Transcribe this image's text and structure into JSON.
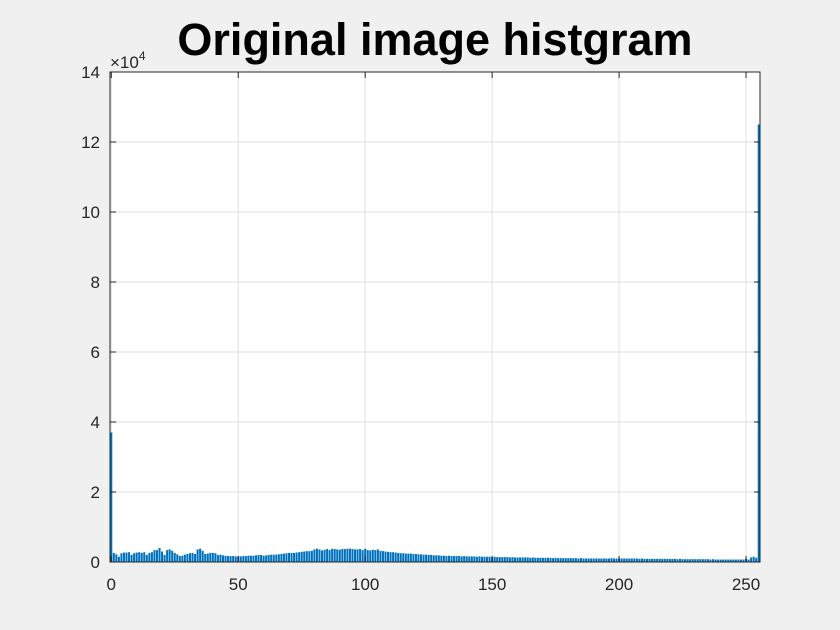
{
  "chart_data": {
    "type": "bar",
    "title": "Original image histgram",
    "xlabel": "",
    "ylabel": "",
    "xlim": [
      -0.5,
      255.5
    ],
    "ylim": [
      0,
      140000
    ],
    "x_ticks": [
      0,
      50,
      100,
      150,
      200,
      250
    ],
    "x_tick_labels": [
      "0",
      "50",
      "100",
      "150",
      "200",
      "250"
    ],
    "y_ticks": [
      0,
      20000,
      40000,
      60000,
      80000,
      100000,
      120000,
      140000
    ],
    "y_tick_labels": [
      "0",
      "2",
      "4",
      "6",
      "8",
      "10",
      "12",
      "14"
    ],
    "y_exponent": {
      "base": "×10",
      "power": "4"
    },
    "grid": true,
    "bar_color": "#0072BD",
    "x": [
      0,
      1,
      2,
      3,
      4,
      5,
      6,
      7,
      8,
      9,
      10,
      11,
      12,
      13,
      14,
      15,
      16,
      17,
      18,
      19,
      20,
      21,
      22,
      23,
      24,
      25,
      26,
      27,
      28,
      29,
      30,
      31,
      32,
      33,
      34,
      35,
      36,
      37,
      38,
      39,
      40,
      41,
      42,
      43,
      44,
      45,
      46,
      47,
      48,
      49,
      50,
      51,
      52,
      53,
      54,
      55,
      56,
      57,
      58,
      59,
      60,
      61,
      62,
      63,
      64,
      65,
      66,
      67,
      68,
      69,
      70,
      71,
      72,
      73,
      74,
      75,
      76,
      77,
      78,
      79,
      80,
      81,
      82,
      83,
      84,
      85,
      86,
      87,
      88,
      89,
      90,
      91,
      92,
      93,
      94,
      95,
      96,
      97,
      98,
      99,
      100,
      101,
      102,
      103,
      104,
      105,
      106,
      107,
      108,
      109,
      110,
      111,
      112,
      113,
      114,
      115,
      116,
      117,
      118,
      119,
      120,
      121,
      122,
      123,
      124,
      125,
      126,
      127,
      128,
      129,
      130,
      131,
      132,
      133,
      134,
      135,
      136,
      137,
      138,
      139,
      140,
      141,
      142,
      143,
      144,
      145,
      146,
      147,
      148,
      149,
      150,
      151,
      152,
      153,
      154,
      155,
      156,
      157,
      158,
      159,
      160,
      161,
      162,
      163,
      164,
      165,
      166,
      167,
      168,
      169,
      170,
      171,
      172,
      173,
      174,
      175,
      176,
      177,
      178,
      179,
      180,
      181,
      182,
      183,
      184,
      185,
      186,
      187,
      188,
      189,
      190,
      191,
      192,
      193,
      194,
      195,
      196,
      197,
      198,
      199,
      200,
      201,
      202,
      203,
      204,
      205,
      206,
      207,
      208,
      209,
      210,
      211,
      212,
      213,
      214,
      215,
      216,
      217,
      218,
      219,
      220,
      221,
      222,
      223,
      224,
      225,
      226,
      227,
      228,
      229,
      230,
      231,
      232,
      233,
      234,
      235,
      236,
      237,
      238,
      239,
      240,
      241,
      242,
      243,
      244,
      245,
      246,
      247,
      248,
      249,
      250,
      251,
      252,
      253,
      254,
      255
    ],
    "values": [
      37000,
      2600,
      2200,
      1500,
      2500,
      2700,
      2700,
      2800,
      2000,
      2500,
      2700,
      2800,
      2600,
      2800,
      2000,
      2600,
      2800,
      3400,
      3400,
      4000,
      3000,
      2000,
      3400,
      3600,
      3200,
      2600,
      2200,
      1700,
      1800,
      2100,
      2300,
      2500,
      2600,
      2300,
      3600,
      3800,
      3200,
      2300,
      2400,
      2600,
      2600,
      2500,
      2000,
      2100,
      1900,
      1800,
      1700,
      1700,
      1700,
      1600,
      1600,
      1600,
      1700,
      1700,
      1800,
      1800,
      1800,
      1900,
      2000,
      2000,
      1800,
      1900,
      2000,
      2100,
      2100,
      2100,
      2200,
      2300,
      2400,
      2500,
      2600,
      2600,
      2600,
      2700,
      2800,
      2900,
      3000,
      3100,
      3100,
      3200,
      3600,
      3800,
      3600,
      3300,
      3500,
      3700,
      3400,
      3800,
      3700,
      3600,
      3500,
      3700,
      3700,
      3800,
      3800,
      3700,
      3600,
      3600,
      3700,
      3400,
      3800,
      3400,
      3300,
      3500,
      3400,
      3600,
      3200,
      3100,
      3000,
      2900,
      2800,
      2800,
      2700,
      2600,
      2500,
      2500,
      2400,
      2400,
      2400,
      2300,
      2300,
      2200,
      2200,
      2100,
      2100,
      2000,
      2000,
      1900,
      1900,
      1900,
      1800,
      1800,
      1700,
      1800,
      1700,
      1700,
      1700,
      1700,
      1600,
      1700,
      1600,
      1600,
      1600,
      1600,
      1500,
      1600,
      1500,
      1500,
      1500,
      1500,
      1400,
      1500,
      1400,
      1400,
      1400,
      1400,
      1400,
      1300,
      1400,
      1300,
      1300,
      1300,
      1300,
      1300,
      1300,
      1200,
      1300,
      1200,
      1200,
      1200,
      1200,
      1200,
      1200,
      1200,
      1100,
      1200,
      1100,
      1100,
      1100,
      1100,
      1100,
      1100,
      1100,
      1100,
      1000,
      1100,
      1000,
      1000,
      1000,
      1000,
      1000,
      1000,
      1000,
      1000,
      1000,
      1000,
      1000,
      1100,
      1000,
      1000,
      1000,
      1000,
      1000,
      1000,
      1000,
      1000,
      1000,
      1000,
      900,
      1000,
      900,
      900,
      900,
      900,
      900,
      900,
      900,
      900,
      900,
      900,
      900,
      900,
      900,
      800,
      900,
      800,
      800,
      800,
      800,
      800,
      800,
      800,
      800,
      800,
      800,
      800,
      700,
      800,
      700,
      700,
      700,
      700,
      700,
      700,
      700,
      700,
      700,
      700,
      700,
      700,
      900,
      700,
      1300,
      1500,
      1200,
      125000
    ]
  }
}
